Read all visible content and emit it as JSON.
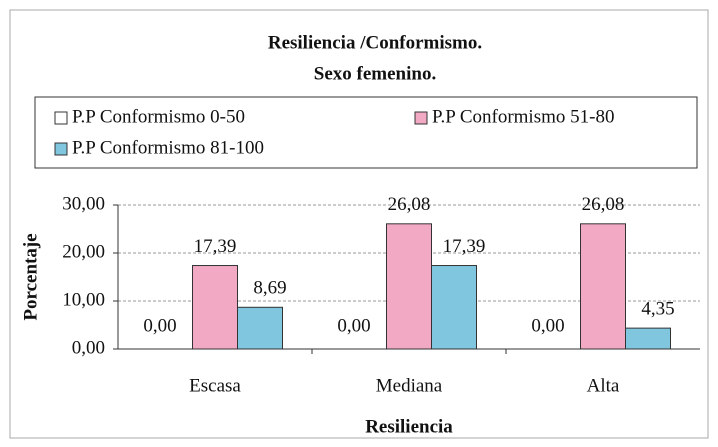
{
  "chart_data": {
    "type": "bar",
    "title": "Resiliencia /Conformismo.",
    "subtitle": "Sexo femenino.",
    "x_label": "Resiliencia",
    "y_label": "Porcentaje",
    "categories": [
      "Escasa",
      "Mediana",
      "Alta"
    ],
    "series": [
      {
        "name": "P.P Conformismo 0-50",
        "color": "#ffffff",
        "values": [
          0,
          0,
          0
        ],
        "value_labels": [
          "0,00",
          "0,00",
          "0,00"
        ]
      },
      {
        "name": "P.P Conformismo 51-80",
        "color": "#f2aac4",
        "values": [
          17.39,
          26.08,
          26.08
        ],
        "value_labels": [
          "17,39",
          "26,08",
          "26,08"
        ]
      },
      {
        "name": "P.P Conformismo 81-100",
        "color": "#7fc6de",
        "values": [
          8.69,
          17.39,
          4.35
        ],
        "value_labels": [
          "8,69",
          "17,39",
          "4,35"
        ]
      }
    ],
    "ylim": [
      0,
      30
    ],
    "yticks": [
      {
        "value": 0,
        "label": "0,00"
      },
      {
        "value": 10,
        "label": "10,00"
      },
      {
        "value": 20,
        "label": "20,00"
      },
      {
        "value": 30,
        "label": "30,00"
      }
    ],
    "grid": true
  }
}
